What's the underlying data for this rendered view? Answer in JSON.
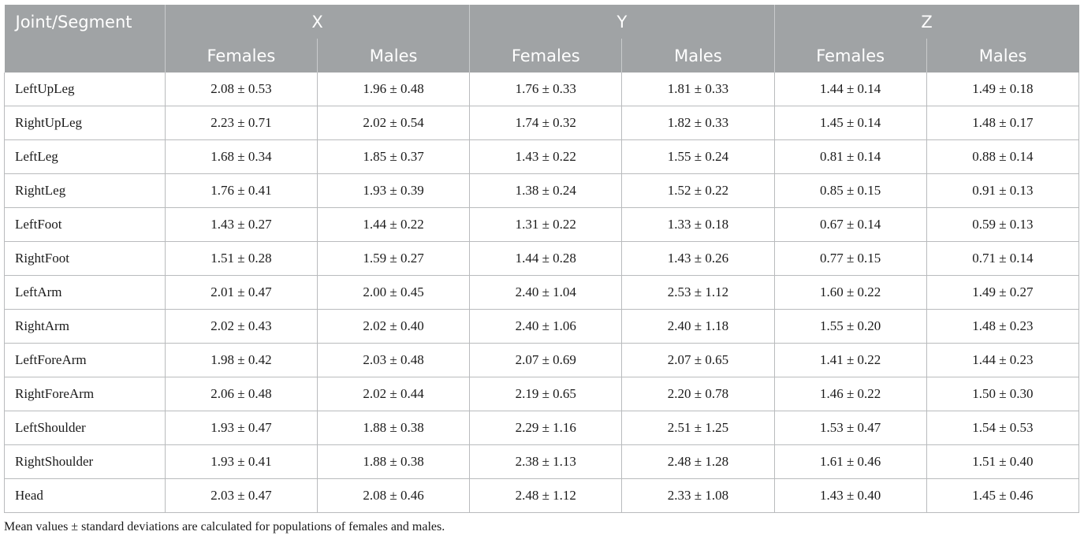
{
  "table": {
    "corner_label": "Joint/Segment",
    "groups": [
      "X",
      "Y",
      "Z"
    ],
    "subheaders": [
      "Females",
      "Males",
      "Females",
      "Males",
      "Females",
      "Males"
    ],
    "rows": [
      {
        "label": "LeftUpLeg",
        "cells": [
          "2.08 ± 0.53",
          "1.96 ± 0.48",
          "1.76 ± 0.33",
          "1.81 ± 0.33",
          "1.44 ± 0.14",
          "1.49 ± 0.18"
        ]
      },
      {
        "label": "RightUpLeg",
        "cells": [
          "2.23 ± 0.71",
          "2.02 ± 0.54",
          "1.74 ± 0.32",
          "1.82 ± 0.33",
          "1.45 ± 0.14",
          "1.48 ± 0.17"
        ]
      },
      {
        "label": "LeftLeg",
        "cells": [
          "1.68 ± 0.34",
          "1.85 ± 0.37",
          "1.43 ± 0.22",
          "1.55 ± 0.24",
          "0.81 ± 0.14",
          "0.88 ± 0.14"
        ]
      },
      {
        "label": "RightLeg",
        "cells": [
          "1.76 ± 0.41",
          "1.93 ± 0.39",
          "1.38 ± 0.24",
          "1.52 ± 0.22",
          "0.85 ± 0.15",
          "0.91 ± 0.13"
        ]
      },
      {
        "label": "LeftFoot",
        "cells": [
          "1.43 ± 0.27",
          "1.44 ± 0.22",
          "1.31 ± 0.22",
          "1.33 ± 0.18",
          "0.67 ± 0.14",
          "0.59 ± 0.13"
        ]
      },
      {
        "label": "RightFoot",
        "cells": [
          "1.51 ± 0.28",
          "1.59 ± 0.27",
          "1.44 ± 0.28",
          "1.43 ± 0.26",
          "0.77 ± 0.15",
          "0.71 ± 0.14"
        ]
      },
      {
        "label": "LeftArm",
        "cells": [
          "2.01 ± 0.47",
          "2.00 ± 0.45",
          "2.40 ± 1.04",
          "2.53 ± 1.12",
          "1.60 ± 0.22",
          "1.49 ± 0.27"
        ]
      },
      {
        "label": "RightArm",
        "cells": [
          "2.02 ± 0.43",
          "2.02 ± 0.40",
          "2.40 ± 1.06",
          "2.40 ± 1.18",
          "1.55 ± 0.20",
          "1.48 ± 0.23"
        ]
      },
      {
        "label": "LeftForeArm",
        "cells": [
          "1.98 ± 0.42",
          "2.03 ± 0.48",
          "2.07 ± 0.69",
          "2.07 ± 0.65",
          "1.41 ± 0.22",
          "1.44 ± 0.23"
        ]
      },
      {
        "label": "RightForeArm",
        "cells": [
          "2.06 ± 0.48",
          "2.02 ± 0.44",
          "2.19 ± 0.65",
          "2.20 ± 0.78",
          "1.46 ± 0.22",
          "1.50 ± 0.30"
        ]
      },
      {
        "label": "LeftShoulder",
        "cells": [
          "1.93 ± 0.47",
          "1.88 ± 0.38",
          "2.29 ± 1.16",
          "2.51 ± 1.25",
          "1.53 ± 0.47",
          "1.54 ± 0.53"
        ]
      },
      {
        "label": "RightShoulder",
        "cells": [
          "1.93 ± 0.41",
          "1.88 ± 0.38",
          "2.38 ± 1.13",
          "2.48 ± 1.28",
          "1.61 ± 0.46",
          "1.51 ± 0.40"
        ]
      },
      {
        "label": "Head",
        "cells": [
          "2.03 ± 0.47",
          "2.08 ± 0.46",
          "2.48 ± 1.12",
          "2.33 ± 1.08",
          "1.43 ± 0.40",
          "1.45 ± 0.46"
        ]
      }
    ]
  },
  "footnote": "Mean values ± standard deviations are calculated for populations of females and males.",
  "colors": {
    "header_bg": "#a0a3a5",
    "header_text": "#ffffff",
    "border": "#b9bbbd"
  }
}
